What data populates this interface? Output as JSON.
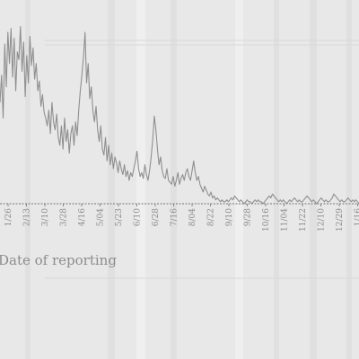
{
  "chart_data": {
    "type": "line",
    "title": "",
    "xlabel": "Date of reporting",
    "ylabel": "",
    "grid": false,
    "legend": "none",
    "colors": {
      "line": "#8f8f8f",
      "axis": "#8a8a8a",
      "text": "#8a8a8a",
      "background": "#e8e8e8"
    },
    "tick_labels": [
      "1/26",
      "2/13",
      "3/10",
      "3/28",
      "4/16",
      "5/04",
      "5/23",
      "6/10",
      "6/28",
      "7/16",
      "8/04",
      "8/22",
      "9/10",
      "9/28",
      "10/16",
      "11/04",
      "11/22",
      "12/10",
      "12/29",
      "1/16"
    ],
    "series": [
      {
        "values": [
          52,
          66,
          44,
          82,
          60,
          88,
          72,
          90,
          65,
          85,
          58,
          78,
          74,
          91,
          68,
          83,
          55,
          76,
          62,
          86,
          71,
          80,
          64,
          72,
          58,
          63,
          50,
          56,
          47,
          44,
          40,
          48,
          36,
          52,
          42,
          38,
          46,
          34,
          30,
          40,
          28,
          44,
          32,
          38,
          26,
          36,
          40,
          30,
          42,
          35,
          48,
          58,
          66,
          75,
          88,
          62,
          72,
          54,
          60,
          48,
          42,
          50,
          38,
          32,
          40,
          28,
          25,
          34,
          22,
          30,
          20,
          26,
          18,
          24,
          21,
          16,
          22,
          18,
          15,
          20,
          14,
          17,
          12,
          16,
          14,
          18,
          22,
          27,
          18,
          14,
          16,
          13,
          20,
          15,
          12,
          17,
          24,
          33,
          45,
          38,
          28,
          20,
          24,
          17,
          14,
          13,
          18,
          12,
          11,
          10,
          14,
          9,
          12,
          16,
          10,
          13,
          15,
          12,
          16,
          18,
          14,
          12,
          17,
          22,
          16,
          12,
          14,
          10,
          8,
          6,
          9,
          7,
          5,
          4,
          6,
          3,
          4,
          2,
          3,
          2,
          1,
          2,
          1,
          1,
          2,
          1,
          2,
          3,
          2,
          4,
          3,
          2,
          1,
          2,
          1,
          0,
          1,
          2,
          1,
          1,
          0,
          1,
          2,
          1,
          2,
          1,
          1,
          0,
          1,
          2,
          3,
          4,
          3,
          5,
          4,
          3,
          2,
          1,
          2,
          1,
          2,
          1,
          0,
          1,
          2,
          1,
          2,
          3,
          2,
          1,
          2,
          1,
          1,
          2,
          3,
          4,
          3,
          2,
          1,
          2,
          1,
          0,
          1,
          2,
          3,
          2,
          1,
          2,
          1,
          1,
          2,
          3,
          5,
          4,
          3,
          2,
          1,
          2,
          1,
          1,
          2,
          3,
          2,
          1,
          2,
          1,
          2,
          1,
          0
        ]
      }
    ],
    "ylim": [
      0,
      100
    ]
  }
}
